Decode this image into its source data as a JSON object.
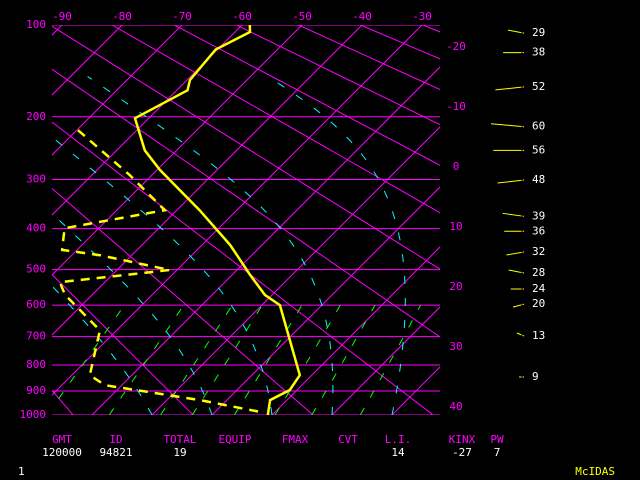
{
  "chart_data": {
    "type": "skewt",
    "ylim": [
      100,
      1000
    ],
    "yticks": [
      100,
      200,
      300,
      400,
      500,
      600,
      700,
      800,
      900,
      1000
    ],
    "xticks": [
      -90,
      -80,
      -70,
      -60,
      -50,
      -40,
      -30
    ],
    "isotherm_labels": [
      -20,
      -10,
      0,
      10,
      20,
      30,
      40
    ],
    "axis_color": "#ff00ff",
    "temperature": {
      "color": "#ffff00",
      "pressure": [
        100,
        106,
        122,
        154,
        166,
        202,
        250,
        283,
        360,
        438,
        514,
        570,
        600,
        838,
        896,
        937,
        1000
      ],
      "values": [
        -58.7,
        -57.5,
        -60.3,
        -59.5,
        -58.2,
        -62.3,
        -55.3,
        -49.5,
        -36.2,
        -25.3,
        -17,
        -11.2,
        -7,
        8,
        8.8,
        7.2,
        9.3
      ]
    },
    "dewpoint": {
      "color": "#ffff00",
      "pressure": [
        219,
        292,
        360,
        399,
        450,
        463,
        501,
        534,
        570,
        679,
        838,
        877,
        937,
        988
      ],
      "values": [
        -69.8,
        -53.7,
        -42,
        -55.7,
        -52.5,
        -45.3,
        -31.2,
        -47.5,
        -44.5,
        -32.8,
        -27,
        -22.8,
        -4.5,
        7.8
      ]
    },
    "wind": {
      "color": "#ffff00",
      "pressure": [
        107,
        125,
        162,
        214,
        250,
        301,
        373,
        406,
        455,
        509,
        553,
        597,
        698,
        845
      ],
      "values": [
        29,
        38,
        52,
        60,
        56,
        48,
        39,
        36,
        32,
        28,
        24,
        20,
        13,
        9
      ]
    },
    "indices": [
      {
        "label": "GMT",
        "value": "120000"
      },
      {
        "label": "ID",
        "value": "94821"
      },
      {
        "label": "TOTAL",
        "value": "19"
      },
      {
        "label": "EQUIP"
      },
      {
        "label": "FMAX"
      },
      {
        "label": "CVT"
      },
      {
        "label": "L.I.",
        "value": "14"
      },
      {
        "label": "KINX",
        "value": "-27"
      },
      {
        "label": "PW",
        "value": "7"
      }
    ],
    "footer": {
      "page": "1",
      "brand": "McIDAS"
    }
  }
}
